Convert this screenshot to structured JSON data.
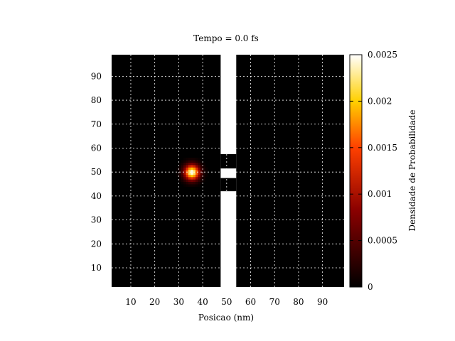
{
  "chart_data": {
    "type": "heatmap",
    "title": "Tempo = 0.0 fs",
    "xlabel": "Posicao (nm)",
    "ylabel": "",
    "colorbar_label": "Densidade de Probabilidade",
    "xlim": [
      2,
      99
    ],
    "ylim": [
      2,
      99
    ],
    "xticks": [
      10,
      20,
      30,
      40,
      50,
      60,
      70,
      80,
      90
    ],
    "yticks": [
      10,
      20,
      30,
      40,
      50,
      60,
      70,
      80,
      90
    ],
    "xtick_labels": [
      "10",
      "20",
      "30",
      "40",
      "50",
      "60",
      "70",
      "80",
      "90"
    ],
    "ytick_labels": [
      "10",
      "20",
      "30",
      "40",
      "50",
      "60",
      "70",
      "80",
      "90"
    ],
    "grid": true,
    "colorscale": "black-red-yellow-white",
    "zlim": [
      0,
      0.0025
    ],
    "colorbar_ticks": [
      0,
      0.0005,
      0.001,
      0.0015,
      0.002,
      0.0025
    ],
    "colorbar_tick_labels": [
      "0",
      "0.0005",
      "0.001",
      "0.0015",
      "0.002",
      "0.0025"
    ],
    "wavepacket": {
      "center_x": 35.5,
      "center_y": 50,
      "sigma": 2.2,
      "peak": 0.0025
    },
    "barrier": {
      "x_range": [
        47.5,
        54
      ],
      "slits": [
        {
          "y_range": [
            42,
            47.5
          ]
        },
        {
          "y_range": [
            51.5,
            57.5
          ]
        }
      ]
    }
  }
}
